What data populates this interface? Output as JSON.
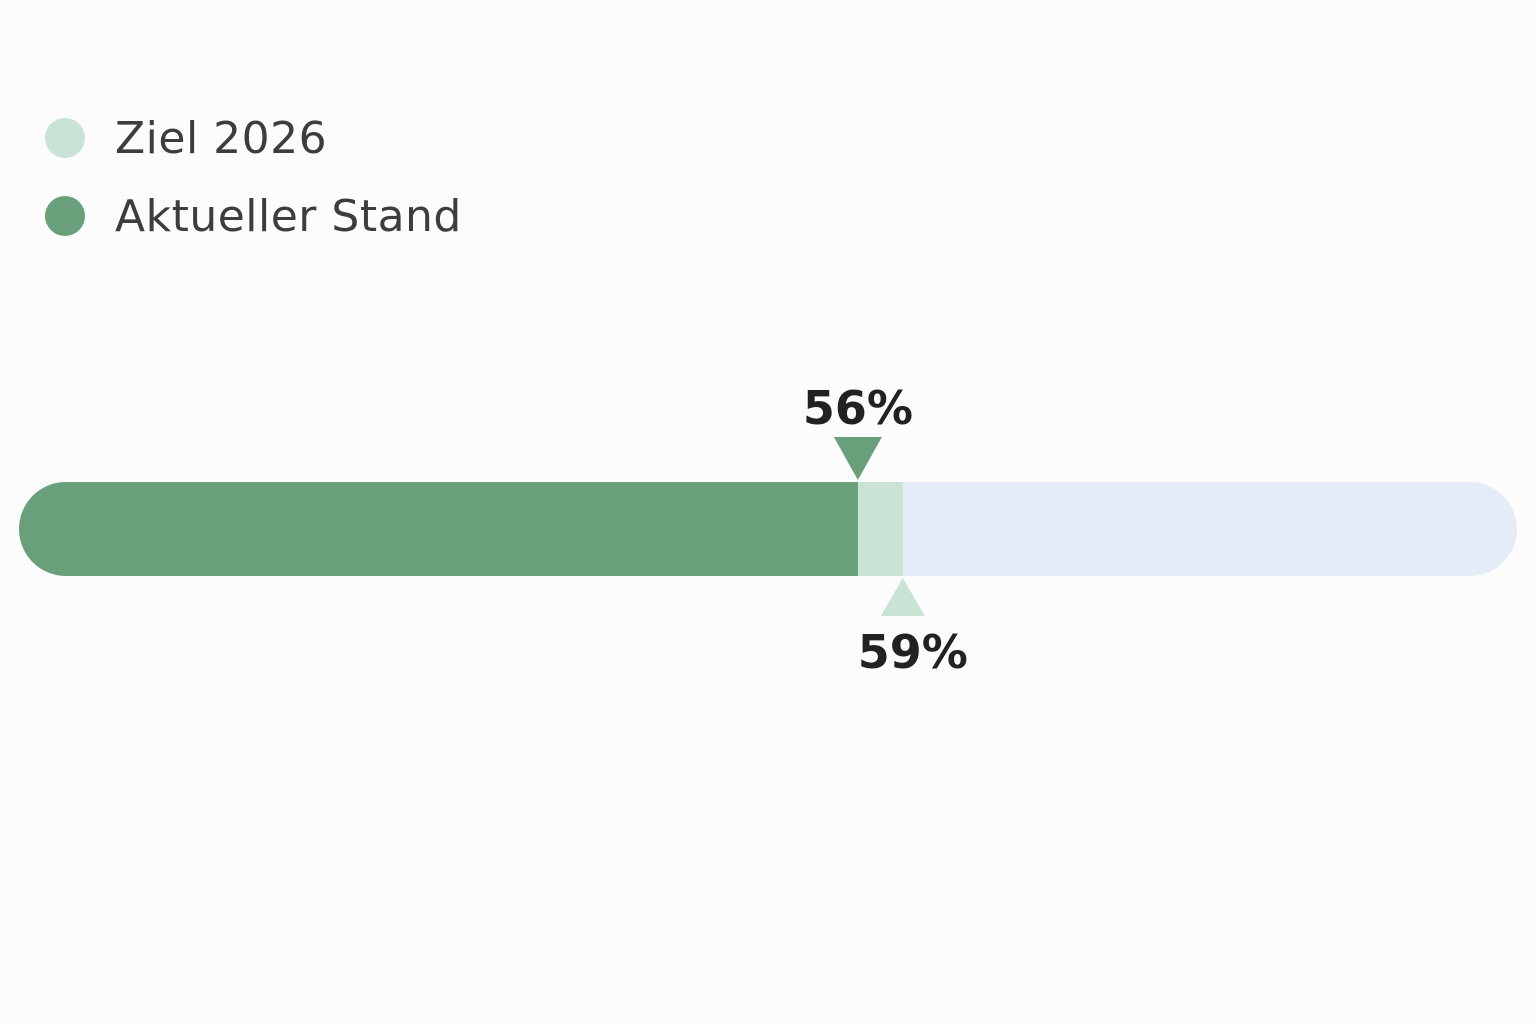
{
  "chart_data": {
    "type": "bar",
    "orientation": "horizontal",
    "range": [
      0,
      100
    ],
    "unit": "%",
    "series": [
      {
        "name": "Ziel 2026",
        "value": 59,
        "value_label": "59%",
        "color": "#c9e3d5"
      },
      {
        "name": "Aktueller Stand",
        "value": 56,
        "value_label": "56%",
        "color": "#6a9f7c"
      }
    ],
    "track_color": "#e4ecf8",
    "grid": false,
    "legend_position": "top-left"
  }
}
